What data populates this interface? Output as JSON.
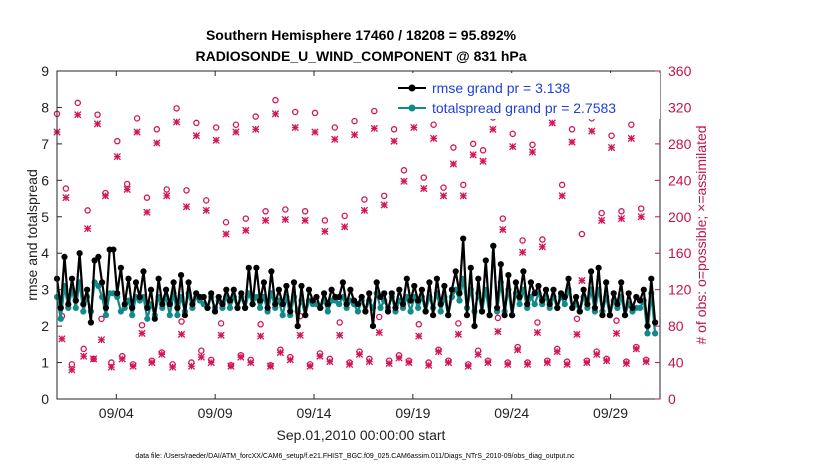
{
  "chart_data": {
    "type": "line",
    "title": "Southern Hemisphere 17460 / 18208 = 95.892%",
    "subtitle": "RADIOSONDE_U_WIND_COMPONENT @ 831 hPa",
    "xlabel": "Sep.01,2010 00:00:00 start",
    "ylabel": "rmse and totalspread",
    "ylabel_right": "# of obs: o=possible; ×=assimilated",
    "footnote": "data file: /Users/raeder/DAI/ATM_forcXX/CAM6_setup/f.e21.FHIST_BGC.f09_025.CAM6assim.011/Diags_NTrS_2010-09/obs_diag_output.nc",
    "xlim": [
      1,
      31.5
    ],
    "ylim": [
      0,
      9
    ],
    "ylim_right": [
      0,
      360
    ],
    "x_ticks": [
      4,
      9,
      14,
      19,
      24,
      29
    ],
    "x_tick_labels": [
      "09/04",
      "09/09",
      "09/14",
      "09/19",
      "09/24",
      "09/29"
    ],
    "y_ticks": [
      0,
      1,
      2,
      3,
      4,
      5,
      6,
      7,
      8,
      9
    ],
    "y_tick_labels": [
      "0",
      "1",
      "2",
      "3",
      "4",
      "5",
      "6",
      "7",
      "8",
      "9"
    ],
    "y2_ticks": [
      0,
      40,
      80,
      120,
      160,
      200,
      240,
      280,
      320,
      360
    ],
    "y2_tick_labels": [
      "0",
      "40",
      "80",
      "120",
      "160",
      "200",
      "240",
      "280",
      "320",
      "360"
    ],
    "legend_position": "top-right",
    "colors": {
      "rmse": "#000000",
      "spread": "#138a8a",
      "obs": "#d4145a",
      "legend_text": "#1f3fdb"
    },
    "series": [
      {
        "name": "rmse grand pr = 3.138",
        "values": [
          3.3,
          2.5,
          3.9,
          2.6,
          3.3,
          2.7,
          4.0,
          2.6,
          3.0,
          2.1,
          3.8,
          3.9,
          3.2,
          2.5,
          4.1,
          4.1,
          2.9,
          3.6,
          2.6,
          3.3,
          2.5,
          3.2,
          2.8,
          3.5,
          2.5,
          3.0,
          2.2,
          3.3,
          2.6,
          3.0,
          2.6,
          3.2,
          2.5,
          3.4,
          2.3,
          3.2,
          2.6,
          2.9,
          2.8,
          2.8,
          2.5,
          2.9,
          2.4,
          2.8,
          2.6,
          3.0,
          2.7,
          3.0,
          2.5,
          2.9,
          2.5,
          3.6,
          2.6,
          3.6,
          2.7,
          3.2,
          2.5,
          3.5,
          2.6,
          3.0,
          2.6,
          3.1,
          2.4,
          3.2,
          2.0,
          3.1,
          2.3,
          3.0,
          2.7,
          2.8,
          2.5,
          2.9,
          2.6,
          3.0,
          2.8,
          2.8,
          3.2,
          2.6,
          3.0,
          2.7,
          2.6,
          2.8,
          2.4,
          2.9,
          2.0,
          3.2,
          2.8,
          2.9,
          2.4,
          2.9,
          2.5,
          3.0,
          2.6,
          3.3,
          2.7,
          3.1,
          2.7,
          3.0,
          2.4,
          3.2,
          2.3,
          3.3,
          2.6,
          3.1,
          2.3,
          3.0,
          3.5,
          2.9,
          4.4,
          2.3,
          3.6,
          2.0,
          3.3,
          2.4,
          3.8,
          2.3,
          4.2,
          2.5,
          3.7,
          2.3,
          3.4,
          2.3,
          3.2,
          2.8,
          3.5,
          2.6,
          3.2,
          2.9,
          3.1,
          2.7,
          3.0,
          2.6,
          3.0,
          2.5,
          2.9,
          2.8,
          3.3,
          2.5,
          2.8,
          2.4,
          3.0,
          2.6,
          3.5,
          2.5,
          3.6,
          2.3,
          3.2,
          2.3,
          2.9,
          2.6,
          3.2,
          2.3,
          2.9,
          2.5,
          2.8,
          2.7,
          3.0,
          2.0,
          3.3,
          2.1
        ]
      },
      {
        "name": "totalspread grand pr = 2.7583",
        "values": [
          2.8,
          2.2,
          3.1,
          2.5,
          3.0,
          2.5,
          3.2,
          2.4,
          2.8,
          2.4,
          3.2,
          3.1,
          2.8,
          2.3,
          2.9,
          2.9,
          2.8,
          2.4,
          2.5,
          2.7,
          2.3,
          2.8,
          2.7,
          2.8,
          2.2,
          2.6,
          2.3,
          2.8,
          2.5,
          2.8,
          2.3,
          2.9,
          2.3,
          2.8,
          2.4,
          2.9,
          2.5,
          2.8,
          2.7,
          2.6,
          2.5,
          2.8,
          2.5,
          2.7,
          2.5,
          2.8,
          2.5,
          2.8,
          2.5,
          2.8,
          2.5,
          2.9,
          2.6,
          2.8,
          2.5,
          2.8,
          2.4,
          2.9,
          2.5,
          2.7,
          2.3,
          2.8,
          2.3,
          2.8,
          2.4,
          2.7,
          2.3,
          2.7,
          2.6,
          2.6,
          2.5,
          2.7,
          2.4,
          2.7,
          2.7,
          2.6,
          2.8,
          2.5,
          2.7,
          2.6,
          2.4,
          2.7,
          2.4,
          2.7,
          2.5,
          2.9,
          2.5,
          2.7,
          2.5,
          2.8,
          2.4,
          2.7,
          2.5,
          2.8,
          2.4,
          2.8,
          2.5,
          2.8,
          2.4,
          2.8,
          2.5,
          2.9,
          2.4,
          2.8,
          2.3,
          2.8,
          3.0,
          2.7,
          3.3,
          2.5,
          3.0,
          2.4,
          2.9,
          2.4,
          3.0,
          2.3,
          4.2,
          2.4,
          3.2,
          2.4,
          3.0,
          2.3,
          2.9,
          2.6,
          3.0,
          2.5,
          2.8,
          2.6,
          2.9,
          2.6,
          2.8,
          2.5,
          2.8,
          2.5,
          2.8,
          2.6,
          3.0,
          2.5,
          2.6,
          2.4,
          2.8,
          2.5,
          3.0,
          2.4,
          3.0,
          2.4,
          2.8,
          2.3,
          2.7,
          2.5,
          2.8,
          2.3,
          2.6,
          2.4,
          2.5,
          2.5,
          2.7,
          1.8,
          2.9,
          1.8
        ]
      }
    ],
    "obs_possible": [
      {
        "x": 1.0,
        "y": 313
      },
      {
        "x": 1.25,
        "y": 91
      },
      {
        "x": 1.45,
        "y": 231
      },
      {
        "x": 1.75,
        "y": 38
      },
      {
        "x": 2.05,
        "y": 325
      },
      {
        "x": 2.35,
        "y": 55
      },
      {
        "x": 2.55,
        "y": 207
      },
      {
        "x": 2.85,
        "y": 44
      },
      {
        "x": 3.05,
        "y": 312
      },
      {
        "x": 3.25,
        "y": 88
      },
      {
        "x": 3.45,
        "y": 226
      },
      {
        "x": 3.75,
        "y": 40
      },
      {
        "x": 4.05,
        "y": 283
      },
      {
        "x": 4.3,
        "y": 47
      },
      {
        "x": 4.55,
        "y": 236
      },
      {
        "x": 4.85,
        "y": 38
      },
      {
        "x": 5.05,
        "y": 308
      },
      {
        "x": 5.3,
        "y": 81
      },
      {
        "x": 5.55,
        "y": 221
      },
      {
        "x": 5.8,
        "y": 42
      },
      {
        "x": 6.05,
        "y": 296
      },
      {
        "x": 6.3,
        "y": 51
      },
      {
        "x": 6.55,
        "y": 230
      },
      {
        "x": 6.85,
        "y": 38
      },
      {
        "x": 7.05,
        "y": 319
      },
      {
        "x": 7.3,
        "y": 85
      },
      {
        "x": 7.55,
        "y": 229
      },
      {
        "x": 7.8,
        "y": 40
      },
      {
        "x": 8.05,
        "y": 303
      },
      {
        "x": 8.3,
        "y": 53
      },
      {
        "x": 8.55,
        "y": 218
      },
      {
        "x": 8.8,
        "y": 43
      },
      {
        "x": 9.05,
        "y": 298
      },
      {
        "x": 9.3,
        "y": 83
      },
      {
        "x": 9.55,
        "y": 194
      },
      {
        "x": 9.8,
        "y": 37
      },
      {
        "x": 10.05,
        "y": 301
      },
      {
        "x": 10.3,
        "y": 48
      },
      {
        "x": 10.55,
        "y": 198
      },
      {
        "x": 10.8,
        "y": 43
      },
      {
        "x": 11.05,
        "y": 310
      },
      {
        "x": 11.3,
        "y": 82
      },
      {
        "x": 11.55,
        "y": 206
      },
      {
        "x": 11.8,
        "y": 37
      },
      {
        "x": 12.05,
        "y": 328
      },
      {
        "x": 12.3,
        "y": 54
      },
      {
        "x": 12.55,
        "y": 208
      },
      {
        "x": 12.8,
        "y": 46
      },
      {
        "x": 13.05,
        "y": 315
      },
      {
        "x": 13.3,
        "y": 91
      },
      {
        "x": 13.55,
        "y": 206
      },
      {
        "x": 13.8,
        "y": 38
      },
      {
        "x": 14.05,
        "y": 314
      },
      {
        "x": 14.3,
        "y": 50
      },
      {
        "x": 14.55,
        "y": 196
      },
      {
        "x": 14.8,
        "y": 44
      },
      {
        "x": 15.05,
        "y": 298
      },
      {
        "x": 15.3,
        "y": 84
      },
      {
        "x": 15.55,
        "y": 201
      },
      {
        "x": 15.8,
        "y": 40
      },
      {
        "x": 16.05,
        "y": 305
      },
      {
        "x": 16.3,
        "y": 52
      },
      {
        "x": 16.55,
        "y": 219
      },
      {
        "x": 16.8,
        "y": 44
      },
      {
        "x": 17.05,
        "y": 316
      },
      {
        "x": 17.3,
        "y": 90
      },
      {
        "x": 17.55,
        "y": 223
      },
      {
        "x": 17.8,
        "y": 42
      },
      {
        "x": 18.05,
        "y": 296
      },
      {
        "x": 18.3,
        "y": 48
      },
      {
        "x": 18.55,
        "y": 251
      },
      {
        "x": 18.8,
        "y": 42
      },
      {
        "x": 19.05,
        "y": 312
      },
      {
        "x": 19.3,
        "y": 82
      },
      {
        "x": 19.55,
        "y": 243
      },
      {
        "x": 19.8,
        "y": 40
      },
      {
        "x": 20.05,
        "y": 301
      },
      {
        "x": 20.3,
        "y": 54
      },
      {
        "x": 20.55,
        "y": 232
      },
      {
        "x": 20.8,
        "y": 42
      },
      {
        "x": 21.05,
        "y": 276
      },
      {
        "x": 21.3,
        "y": 83
      },
      {
        "x": 21.55,
        "y": 235
      },
      {
        "x": 21.8,
        "y": 38
      },
      {
        "x": 22.05,
        "y": 280
      },
      {
        "x": 22.3,
        "y": 53
      },
      {
        "x": 22.55,
        "y": 273
      },
      {
        "x": 22.8,
        "y": 42
      },
      {
        "x": 23.05,
        "y": 309
      },
      {
        "x": 23.3,
        "y": 89
      },
      {
        "x": 23.55,
        "y": 198
      },
      {
        "x": 23.8,
        "y": 40
      },
      {
        "x": 24.05,
        "y": 291
      },
      {
        "x": 24.3,
        "y": 57
      },
      {
        "x": 24.55,
        "y": 174
      },
      {
        "x": 24.8,
        "y": 40
      },
      {
        "x": 25.05,
        "y": 279
      },
      {
        "x": 25.3,
        "y": 84
      },
      {
        "x": 25.55,
        "y": 175
      },
      {
        "x": 25.8,
        "y": 42
      },
      {
        "x": 26.05,
        "y": 316
      },
      {
        "x": 26.3,
        "y": 55
      },
      {
        "x": 26.55,
        "y": 235
      },
      {
        "x": 26.8,
        "y": 41
      },
      {
        "x": 27.05,
        "y": 296
      },
      {
        "x": 27.3,
        "y": 88
      },
      {
        "x": 27.55,
        "y": 181
      },
      {
        "x": 27.8,
        "y": 42
      },
      {
        "x": 28.05,
        "y": 308
      },
      {
        "x": 28.3,
        "y": 52
      },
      {
        "x": 28.55,
        "y": 204
      },
      {
        "x": 28.8,
        "y": 44
      },
      {
        "x": 29.05,
        "y": 289
      },
      {
        "x": 29.3,
        "y": 86
      },
      {
        "x": 29.55,
        "y": 206
      },
      {
        "x": 29.8,
        "y": 41
      },
      {
        "x": 30.05,
        "y": 301
      },
      {
        "x": 30.3,
        "y": 57
      },
      {
        "x": 30.55,
        "y": 209
      },
      {
        "x": 30.8,
        "y": 43
      }
    ],
    "obs_assimilated": [
      {
        "x": 1.0,
        "y": 293
      },
      {
        "x": 1.25,
        "y": 66
      },
      {
        "x": 1.45,
        "y": 221
      },
      {
        "x": 1.75,
        "y": 32
      },
      {
        "x": 2.05,
        "y": 312
      },
      {
        "x": 2.35,
        "y": 47
      },
      {
        "x": 2.55,
        "y": 187
      },
      {
        "x": 2.85,
        "y": 44
      },
      {
        "x": 3.05,
        "y": 302
      },
      {
        "x": 3.25,
        "y": 65
      },
      {
        "x": 3.45,
        "y": 223
      },
      {
        "x": 3.75,
        "y": 35
      },
      {
        "x": 4.05,
        "y": 266
      },
      {
        "x": 4.3,
        "y": 44
      },
      {
        "x": 4.55,
        "y": 230
      },
      {
        "x": 4.85,
        "y": 36
      },
      {
        "x": 5.05,
        "y": 293
      },
      {
        "x": 5.3,
        "y": 72
      },
      {
        "x": 5.55,
        "y": 205
      },
      {
        "x": 5.8,
        "y": 40
      },
      {
        "x": 6.05,
        "y": 281
      },
      {
        "x": 6.3,
        "y": 49
      },
      {
        "x": 6.55,
        "y": 223
      },
      {
        "x": 6.85,
        "y": 35
      },
      {
        "x": 7.05,
        "y": 304
      },
      {
        "x": 7.3,
        "y": 71
      },
      {
        "x": 7.55,
        "y": 211
      },
      {
        "x": 7.8,
        "y": 36
      },
      {
        "x": 8.05,
        "y": 289
      },
      {
        "x": 8.3,
        "y": 46
      },
      {
        "x": 8.55,
        "y": 207
      },
      {
        "x": 8.8,
        "y": 40
      },
      {
        "x": 9.05,
        "y": 284
      },
      {
        "x": 9.3,
        "y": 70
      },
      {
        "x": 9.55,
        "y": 181
      },
      {
        "x": 9.8,
        "y": 36
      },
      {
        "x": 10.05,
        "y": 293
      },
      {
        "x": 10.3,
        "y": 46
      },
      {
        "x": 10.55,
        "y": 185
      },
      {
        "x": 10.8,
        "y": 40
      },
      {
        "x": 11.05,
        "y": 296
      },
      {
        "x": 11.3,
        "y": 69
      },
      {
        "x": 11.55,
        "y": 196
      },
      {
        "x": 11.8,
        "y": 36
      },
      {
        "x": 12.05,
        "y": 313
      },
      {
        "x": 12.3,
        "y": 51
      },
      {
        "x": 12.55,
        "y": 197
      },
      {
        "x": 12.8,
        "y": 43
      },
      {
        "x": 13.05,
        "y": 298
      },
      {
        "x": 13.3,
        "y": 70
      },
      {
        "x": 13.55,
        "y": 196
      },
      {
        "x": 13.8,
        "y": 36
      },
      {
        "x": 14.05,
        "y": 293
      },
      {
        "x": 14.3,
        "y": 47
      },
      {
        "x": 14.55,
        "y": 184
      },
      {
        "x": 14.8,
        "y": 41
      },
      {
        "x": 15.05,
        "y": 285
      },
      {
        "x": 15.3,
        "y": 70
      },
      {
        "x": 15.55,
        "y": 189
      },
      {
        "x": 15.8,
        "y": 38
      },
      {
        "x": 16.05,
        "y": 290
      },
      {
        "x": 16.3,
        "y": 49
      },
      {
        "x": 16.55,
        "y": 207
      },
      {
        "x": 16.8,
        "y": 41
      },
      {
        "x": 17.05,
        "y": 297
      },
      {
        "x": 17.3,
        "y": 73
      },
      {
        "x": 17.55,
        "y": 213
      },
      {
        "x": 17.8,
        "y": 39
      },
      {
        "x": 18.05,
        "y": 283
      },
      {
        "x": 18.3,
        "y": 45
      },
      {
        "x": 18.55,
        "y": 239
      },
      {
        "x": 18.8,
        "y": 40
      },
      {
        "x": 19.05,
        "y": 298
      },
      {
        "x": 19.3,
        "y": 69
      },
      {
        "x": 19.55,
        "y": 231
      },
      {
        "x": 19.8,
        "y": 37
      },
      {
        "x": 20.05,
        "y": 286
      },
      {
        "x": 20.3,
        "y": 52
      },
      {
        "x": 20.55,
        "y": 223
      },
      {
        "x": 20.8,
        "y": 40
      },
      {
        "x": 21.05,
        "y": 258
      },
      {
        "x": 21.3,
        "y": 71
      },
      {
        "x": 21.55,
        "y": 223
      },
      {
        "x": 21.8,
        "y": 36
      },
      {
        "x": 22.05,
        "y": 268
      },
      {
        "x": 22.3,
        "y": 49
      },
      {
        "x": 22.55,
        "y": 261
      },
      {
        "x": 22.8,
        "y": 40
      },
      {
        "x": 23.05,
        "y": 296
      },
      {
        "x": 23.3,
        "y": 74
      },
      {
        "x": 23.55,
        "y": 186
      },
      {
        "x": 23.8,
        "y": 38
      },
      {
        "x": 24.05,
        "y": 277
      },
      {
        "x": 24.3,
        "y": 54
      },
      {
        "x": 24.55,
        "y": 161
      },
      {
        "x": 24.8,
        "y": 38
      },
      {
        "x": 25.05,
        "y": 271
      },
      {
        "x": 25.3,
        "y": 73
      },
      {
        "x": 25.55,
        "y": 167
      },
      {
        "x": 25.8,
        "y": 40
      },
      {
        "x": 26.05,
        "y": 303
      },
      {
        "x": 26.3,
        "y": 52
      },
      {
        "x": 26.55,
        "y": 223
      },
      {
        "x": 26.8,
        "y": 38
      },
      {
        "x": 27.05,
        "y": 282
      },
      {
        "x": 27.3,
        "y": 71
      },
      {
        "x": 27.55,
        "y": 130
      },
      {
        "x": 27.8,
        "y": 40
      },
      {
        "x": 28.05,
        "y": 294
      },
      {
        "x": 28.3,
        "y": 49
      },
      {
        "x": 28.55,
        "y": 196
      },
      {
        "x": 28.8,
        "y": 42
      },
      {
        "x": 29.05,
        "y": 276
      },
      {
        "x": 29.3,
        "y": 72
      },
      {
        "x": 29.55,
        "y": 198
      },
      {
        "x": 29.8,
        "y": 39
      },
      {
        "x": 30.05,
        "y": 286
      },
      {
        "x": 30.3,
        "y": 55
      },
      {
        "x": 30.55,
        "y": 200
      },
      {
        "x": 30.8,
        "y": 41
      }
    ]
  }
}
